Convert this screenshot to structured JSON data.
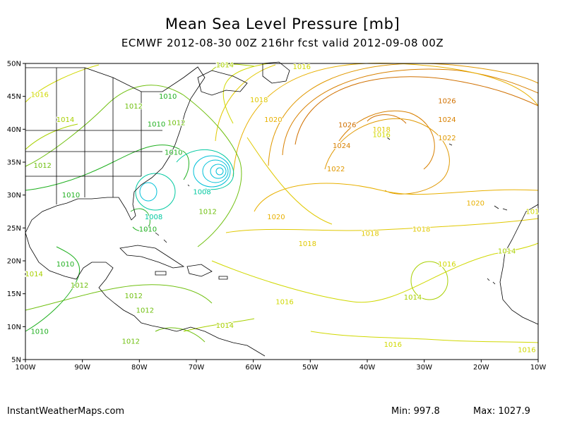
{
  "title": "Mean Sea Level Pressure [mb]",
  "subtitle": "ECMWF 2012-08-30 00Z 216hr fcst valid 2012-09-08 00Z",
  "footer": {
    "site": "InstantWeatherMaps.com",
    "min": "Min:  997.8",
    "max": "Max: 1027.9"
  },
  "colors": {
    "c1004": "#00c0d8",
    "c1008": "#00c8a0",
    "c1010": "#20b020",
    "c1012": "#70c010",
    "c1014": "#a8d000",
    "c1016": "#d0d800",
    "c1018": "#e0c800",
    "c1020": "#e8b000",
    "c1022": "#e09800",
    "c1024": "#d88000",
    "c1026": "#d07000"
  },
  "map_data": {
    "projection": "lat-lon",
    "lon_range": [
      -100,
      -10
    ],
    "lat_range": [
      5,
      50
    ],
    "lon_ticks": [
      "100W",
      "90W",
      "80W",
      "70W",
      "60W",
      "50W",
      "40W",
      "30W",
      "20W",
      "10W"
    ],
    "lat_ticks": [
      "5N",
      "10N",
      "15N",
      "20N",
      "25N",
      "30N",
      "35N",
      "40N",
      "45N",
      "50N"
    ],
    "contour_labels": [
      {
        "text": "1016",
        "lon": -97.5,
        "lat": 45.3,
        "level": "c1016"
      },
      {
        "text": "1014",
        "lon": -93.0,
        "lat": 41.5,
        "level": "c1014"
      },
      {
        "text": "1012",
        "lon": -97.0,
        "lat": 34.5,
        "level": "c1012"
      },
      {
        "text": "1010",
        "lon": -92.0,
        "lat": 30.0,
        "level": "c1010"
      },
      {
        "text": "1012",
        "lon": -81.0,
        "lat": 43.5,
        "level": "c1012"
      },
      {
        "text": "1010",
        "lon": -75.0,
        "lat": 45.0,
        "level": "c1010"
      },
      {
        "text": "1010",
        "lon": -77.0,
        "lat": 40.8,
        "level": "c1010"
      },
      {
        "text": "1012",
        "lon": -73.5,
        "lat": 41.0,
        "level": "c1012"
      },
      {
        "text": "1010",
        "lon": -74.0,
        "lat": 36.5,
        "level": "c1010"
      },
      {
        "text": "1014",
        "lon": -65.0,
        "lat": 49.8,
        "level": "c1014"
      },
      {
        "text": "1016",
        "lon": -51.5,
        "lat": 49.5,
        "level": "c1016"
      },
      {
        "text": "1018",
        "lon": -59.0,
        "lat": 44.5,
        "level": "c1018"
      },
      {
        "text": "1020",
        "lon": -56.5,
        "lat": 41.5,
        "level": "c1020"
      },
      {
        "text": "1008",
        "lon": -77.5,
        "lat": 26.7,
        "level": "c1008"
      },
      {
        "text": "1008",
        "lon": -69.0,
        "lat": 30.5,
        "level": "c1008"
      },
      {
        "text": "1010",
        "lon": -78.5,
        "lat": 24.8,
        "level": "c1010"
      },
      {
        "text": "1012",
        "lon": -68.0,
        "lat": 27.5,
        "level": "c1012"
      },
      {
        "text": "1020",
        "lon": -56.0,
        "lat": 26.7,
        "level": "c1020"
      },
      {
        "text": "1026",
        "lon": -26.0,
        "lat": 44.3,
        "level": "c1026"
      },
      {
        "text": "1024",
        "lon": -26.0,
        "lat": 41.5,
        "level": "c1024"
      },
      {
        "text": "1022",
        "lon": -26.0,
        "lat": 38.7,
        "level": "c1022"
      },
      {
        "text": "1026",
        "lon": -43.5,
        "lat": 40.7,
        "level": "c1026"
      },
      {
        "text": "1024",
        "lon": -44.5,
        "lat": 37.5,
        "level": "c1024"
      },
      {
        "text": "1022",
        "lon": -45.5,
        "lat": 34.0,
        "level": "c1022"
      },
      {
        "text": "1018",
        "lon": -37.5,
        "lat": 40.0,
        "level": "c1018"
      },
      {
        "text": "1016",
        "lon": -37.5,
        "lat": 39.2,
        "level": "c1016"
      },
      {
        "text": "1020",
        "lon": -21.0,
        "lat": 28.8,
        "level": "c1020"
      },
      {
        "text": "1018",
        "lon": -39.5,
        "lat": 24.2,
        "level": "c1018"
      },
      {
        "text": "1018",
        "lon": -30.5,
        "lat": 24.8,
        "level": "c1018"
      },
      {
        "text": "1018",
        "lon": -50.5,
        "lat": 22.6,
        "level": "c1018"
      },
      {
        "text": "1016",
        "lon": -26.0,
        "lat": 19.5,
        "level": "c1016"
      },
      {
        "text": "1014",
        "lon": -15.5,
        "lat": 21.5,
        "level": "c1014"
      },
      {
        "text": "1014",
        "lon": -32.0,
        "lat": 14.5,
        "level": "c1014"
      },
      {
        "text": "1016",
        "lon": -54.5,
        "lat": 13.8,
        "level": "c1016"
      },
      {
        "text": "1016",
        "lon": -35.5,
        "lat": 7.3,
        "level": "c1016"
      },
      {
        "text": "1016",
        "lon": -12.0,
        "lat": 6.5,
        "level": "c1016"
      },
      {
        "text": "1010",
        "lon": -93.0,
        "lat": 19.5,
        "level": "c1010"
      },
      {
        "text": "1012",
        "lon": -90.5,
        "lat": 16.3,
        "level": "c1012"
      },
      {
        "text": "1012",
        "lon": -81.0,
        "lat": 14.7,
        "level": "c1012"
      },
      {
        "text": "1014",
        "lon": -98.5,
        "lat": 18.0,
        "level": "c1014"
      },
      {
        "text": "1010",
        "lon": -97.5,
        "lat": 9.3,
        "level": "c1010"
      },
      {
        "text": "1012",
        "lon": -79.0,
        "lat": 12.5,
        "level": "c1012"
      },
      {
        "text": "1012",
        "lon": -81.5,
        "lat": 7.8,
        "level": "c1012"
      },
      {
        "text": "1014",
        "lon": -65.0,
        "lat": 10.2,
        "level": "c1014"
      },
      {
        "text": "101",
        "lon": -11.0,
        "lat": 27.5,
        "level": "c1016"
      }
    ]
  }
}
